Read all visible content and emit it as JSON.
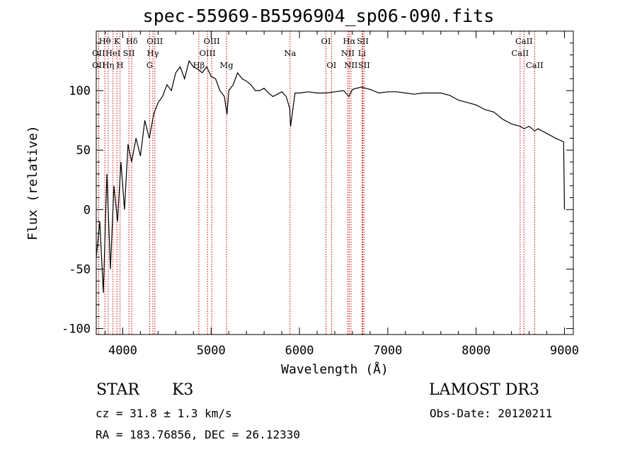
{
  "chart_data": {
    "type": "line",
    "title": "spec-55969-B5596904_sp06-090.fits",
    "xlabel": "Wavelength (Å)",
    "ylabel": "Flux (relative)",
    "xlim": [
      3700,
      9100
    ],
    "ylim": [
      -105,
      150
    ],
    "xticks": [
      4000,
      5000,
      6000,
      7000,
      8000,
      9000
    ],
    "yticks": [
      -100,
      -50,
      0,
      50,
      100
    ],
    "grid": false,
    "line_color": "#000000",
    "marker_color": "#cc0000",
    "series": [
      {
        "name": "flux",
        "x": [
          3700,
          3740,
          3780,
          3820,
          3860,
          3900,
          3940,
          3980,
          4020,
          4060,
          4100,
          4150,
          4200,
          4250,
          4300,
          4350,
          4400,
          4450,
          4500,
          4550,
          4600,
          4650,
          4700,
          4750,
          4800,
          4850,
          4900,
          4950,
          5000,
          5050,
          5100,
          5150,
          5180,
          5200,
          5250,
          5300,
          5350,
          5400,
          5450,
          5500,
          5550,
          5600,
          5650,
          5700,
          5750,
          5800,
          5850,
          5890,
          5900,
          5950,
          6000,
          6100,
          6200,
          6300,
          6400,
          6500,
          6560,
          6600,
          6700,
          6800,
          6900,
          7000,
          7100,
          7200,
          7300,
          7400,
          7500,
          7600,
          7700,
          7800,
          7900,
          8000,
          8100,
          8200,
          8300,
          8400,
          8498,
          8542,
          8600,
          8662,
          8700,
          8800,
          8900,
          8990,
          9000
        ],
        "y": [
          -40,
          -10,
          -70,
          30,
          -50,
          20,
          -10,
          40,
          0,
          55,
          40,
          60,
          45,
          75,
          60,
          80,
          90,
          95,
          105,
          100,
          115,
          120,
          110,
          125,
          120,
          118,
          115,
          120,
          112,
          110,
          100,
          95,
          80,
          100,
          105,
          115,
          110,
          108,
          105,
          100,
          100,
          102,
          98,
          95,
          97,
          99,
          95,
          85,
          70,
          98,
          98,
          99,
          98,
          98,
          99,
          100,
          95,
          101,
          103,
          101,
          98,
          99,
          99,
          98,
          97,
          98,
          98,
          98,
          96,
          92,
          90,
          88,
          84,
          82,
          76,
          72,
          70,
          68,
          70,
          66,
          68,
          64,
          60,
          57,
          0
        ]
      }
    ],
    "annotations": [
      {
        "label": "Hθ",
        "x": 3797,
        "row": 1
      },
      {
        "label": "K",
        "x": 3934,
        "row": 1
      },
      {
        "label": "Hδ",
        "x": 4102,
        "row": 1
      },
      {
        "label": "OII",
        "x": 3727,
        "row": 2
      },
      {
        "label": "HeI",
        "x": 3889,
        "row": 2
      },
      {
        "label": "SII",
        "x": 4069,
        "row": 2
      },
      {
        "label": "OII",
        "x": 3727,
        "row": 3
      },
      {
        "label": "Hη",
        "x": 3835,
        "row": 3
      },
      {
        "label": "H",
        "x": 3969,
        "row": 3
      },
      {
        "label": "OIII",
        "x": 4363,
        "row": 1
      },
      {
        "label": "Hγ",
        "x": 4341,
        "row": 2
      },
      {
        "label": "G",
        "x": 4305,
        "row": 3
      },
      {
        "label": "OIII",
        "x": 5007,
        "row": 1
      },
      {
        "label": "OIII",
        "x": 4959,
        "row": 2
      },
      {
        "label": "Hβ",
        "x": 4861,
        "row": 3
      },
      {
        "label": "Mg",
        "x": 5175,
        "row": 3
      },
      {
        "label": "Na",
        "x": 5894,
        "row": 2
      },
      {
        "label": "OI",
        "x": 6300,
        "row": 1
      },
      {
        "label": "OI",
        "x": 6363,
        "row": 3
      },
      {
        "label": "Hα",
        "x": 6563,
        "row": 1
      },
      {
        "label": "SII",
        "x": 6716,
        "row": 1
      },
      {
        "label": "NII",
        "x": 6548,
        "row": 2
      },
      {
        "label": "Li",
        "x": 6708,
        "row": 2
      },
      {
        "label": "NII",
        "x": 6583,
        "row": 3
      },
      {
        "label": "SII",
        "x": 6731,
        "row": 3
      },
      {
        "label": "CaII",
        "x": 8542,
        "row": 1
      },
      {
        "label": "CaII",
        "x": 8498,
        "row": 2
      },
      {
        "label": "CaII",
        "x": 8662,
        "row": 3
      }
    ]
  },
  "info": {
    "object_type": "STAR",
    "object_class": "K3",
    "survey": "LAMOST DR3",
    "cz": "cz = 31.8 ± 1.3 km/s",
    "obs_date": "Obs-Date: 20120211",
    "coords": "RA = 183.76856, DEC =  26.12330"
  }
}
